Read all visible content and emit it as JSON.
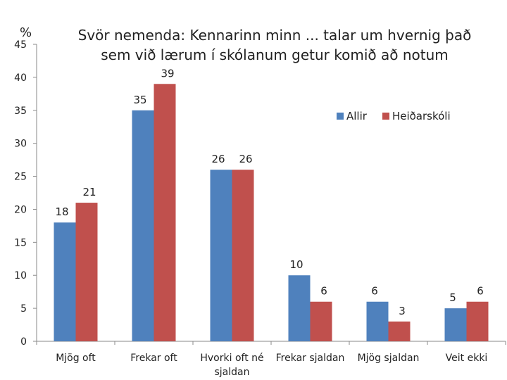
{
  "chart_data": {
    "type": "bar",
    "title_lines": [
      "Svör nemenda: Kennarinn minn ... talar um hvernig það",
      "sem við lærum í skólanum getur komið að notum"
    ],
    "unit_label": "%",
    "categories": [
      "Mjög oft",
      "Frekar oft",
      "Hvorki oft né sjaldan",
      "Frekar sjaldan",
      "Mjög sjaldan",
      "Veit ekki"
    ],
    "series": [
      {
        "name": "Allir",
        "color": "#4f81bd",
        "values": [
          18,
          35,
          26,
          10,
          6,
          5
        ]
      },
      {
        "name": "Heiðarskóli",
        "color": "#c0504d",
        "values": [
          21,
          39,
          26,
          6,
          3,
          6
        ]
      }
    ],
    "ylim": [
      0,
      45
    ],
    "yticks": [
      0,
      5,
      10,
      15,
      20,
      25,
      30,
      35,
      40,
      45
    ],
    "legend_position": "top-right",
    "grid": false
  }
}
